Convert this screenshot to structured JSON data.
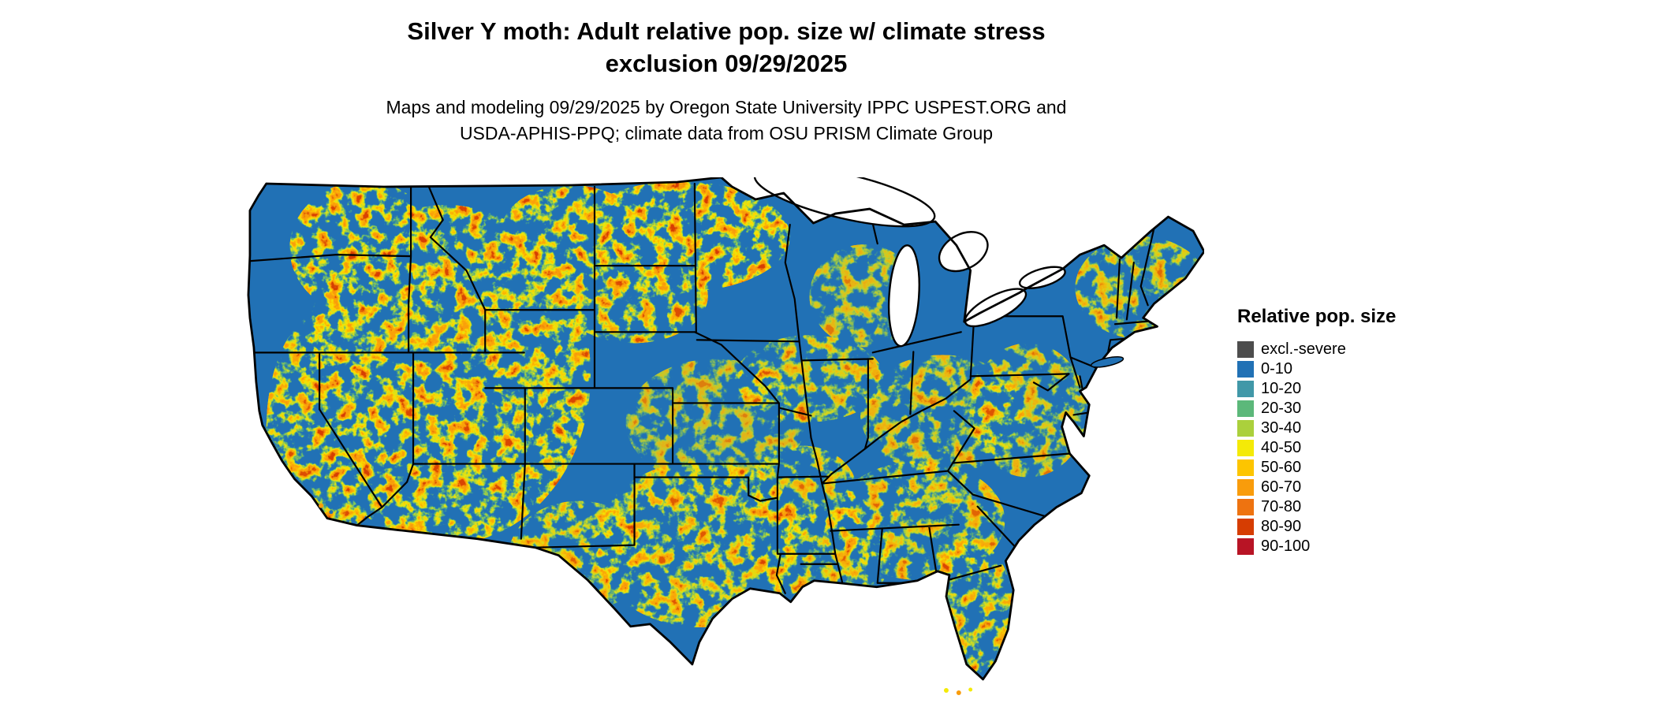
{
  "title": {
    "line1": "Silver Y moth: Adult relative pop. size w/ climate stress",
    "line2": "exclusion 09/29/2025"
  },
  "subtitle": {
    "line1": "Maps and modeling 09/29/2025 by Oregon State University IPPC USPEST.ORG and",
    "line2": "USDA-APHIS-PPQ; climate data from OSU PRISM Climate Group"
  },
  "map": {
    "region": "Contiguous United States",
    "border_color": "#000000",
    "water_color": "#ffffff"
  },
  "legend": {
    "title": "Relative pop. size",
    "entries": [
      {
        "label": "excl.-severe",
        "color": "#4d4d4d"
      },
      {
        "label": "0-10",
        "color": "#2171b5"
      },
      {
        "label": "10-20",
        "color": "#4198a8"
      },
      {
        "label": "20-30",
        "color": "#5cb87a"
      },
      {
        "label": "30-40",
        "color": "#abd03c"
      },
      {
        "label": "40-50",
        "color": "#f4ea07"
      },
      {
        "label": "50-60",
        "color": "#fdc500"
      },
      {
        "label": "60-70",
        "color": "#f99c0b"
      },
      {
        "label": "70-80",
        "color": "#ee7310"
      },
      {
        "label": "80-90",
        "color": "#d63d02"
      },
      {
        "label": "90-100",
        "color": "#b81425"
      }
    ]
  },
  "chart_data": {
    "type": "heatmap",
    "title": "Silver Y moth: Adult relative pop. size w/ climate stress exclusion 09/29/2025",
    "region": "Contiguous United States",
    "legend_title": "Relative pop. size",
    "classes": [
      "excl.-severe",
      "0-10",
      "10-20",
      "20-30",
      "30-40",
      "40-50",
      "50-60",
      "60-70",
      "70-80",
      "80-90",
      "90-100"
    ],
    "colors": [
      "#4d4d4d",
      "#2171b5",
      "#4198a8",
      "#5cb87a",
      "#abd03c",
      "#f4ea07",
      "#fdc500",
      "#f99c0b",
      "#ee7310",
      "#d63d02",
      "#b81425"
    ],
    "notes": "Raster map: predominantly 0-10 (blue) with mottled higher relative population bands (yellow/orange/red) across western mountains, northern plains, south-central and southeastern regions."
  }
}
